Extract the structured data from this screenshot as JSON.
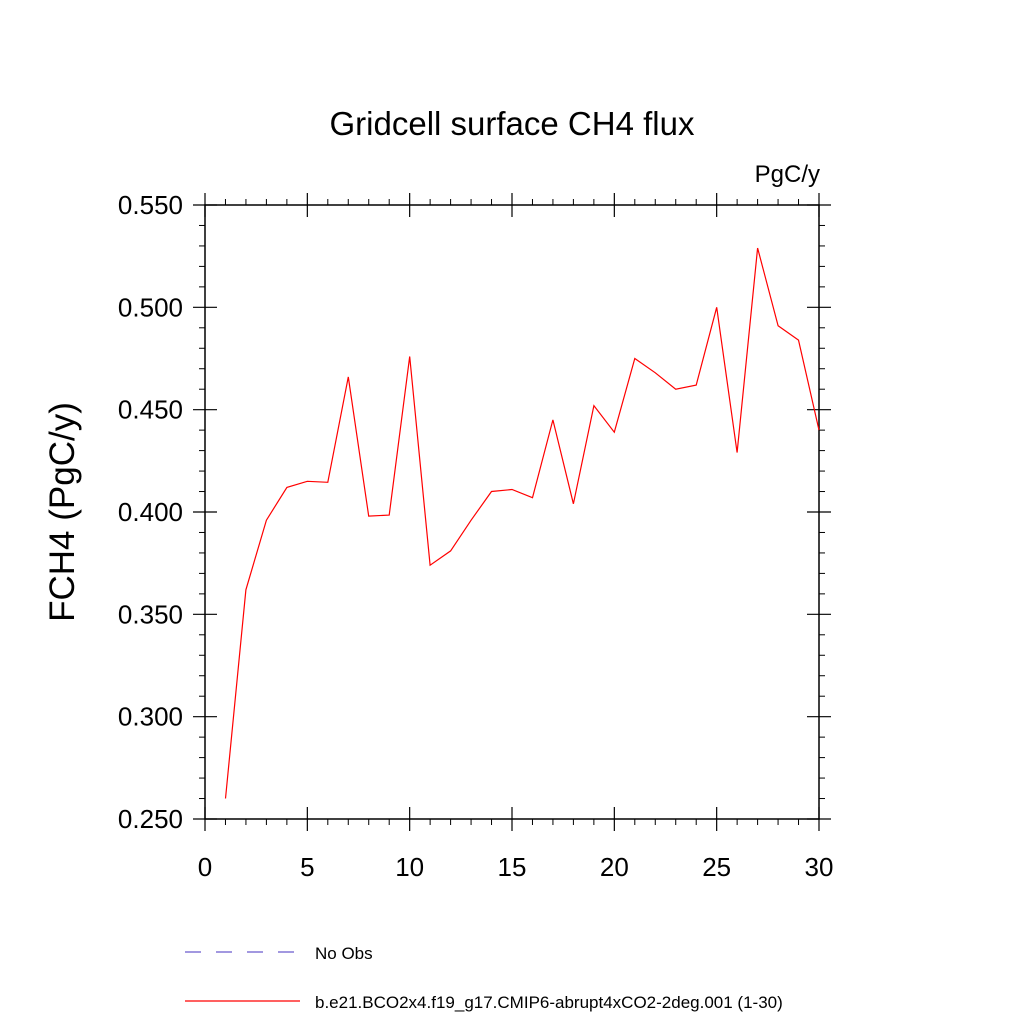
{
  "chart_data": {
    "type": "line",
    "title": "Gridcell surface CH4 flux",
    "units": "PgC/y",
    "ylabel": "FCH4  (PgC/y)",
    "xlabel": "",
    "xlim": [
      0,
      30
    ],
    "ylim": [
      0.25,
      0.55
    ],
    "xticks": [
      0,
      5,
      10,
      15,
      20,
      25,
      30
    ],
    "xtick_labels": [
      "0",
      "5",
      "10",
      "15",
      "20",
      "25",
      "30"
    ],
    "yticks": [
      0.25,
      0.3,
      0.35,
      0.4,
      0.45,
      0.5,
      0.55
    ],
    "ytick_labels": [
      "0.250",
      "0.300",
      "0.350",
      "0.400",
      "0.450",
      "0.500",
      "0.550"
    ],
    "grid": false,
    "legend_position": "bottom",
    "series": [
      {
        "name": "b.e21.BCO2x4.f19_g17.CMIP6-abrupt4xCO2-2deg.001 (1-30)",
        "color": "#ff0000",
        "style": "solid",
        "x": [
          1,
          2,
          3,
          4,
          5,
          6,
          7,
          8,
          9,
          10,
          11,
          12,
          13,
          14,
          15,
          16,
          17,
          18,
          19,
          20,
          21,
          22,
          23,
          24,
          25,
          26,
          27,
          28,
          29,
          30
        ],
        "values": [
          0.26,
          0.362,
          0.396,
          0.412,
          0.415,
          0.4145,
          0.466,
          0.398,
          0.3985,
          0.476,
          0.374,
          0.381,
          0.396,
          0.41,
          0.411,
          0.407,
          0.445,
          0.404,
          0.452,
          0.439,
          0.475,
          0.468,
          0.46,
          0.462,
          0.5,
          0.429,
          0.529,
          0.491,
          0.484,
          0.44
        ]
      }
    ],
    "legend": [
      {
        "label": "No Obs",
        "color": "#6a5acd",
        "style": "dashed"
      },
      {
        "label": "b.e21.BCO2x4.f19_g17.CMIP6-abrupt4xCO2-2deg.001 (1-30)",
        "color": "#ff0000",
        "style": "solid"
      }
    ]
  }
}
